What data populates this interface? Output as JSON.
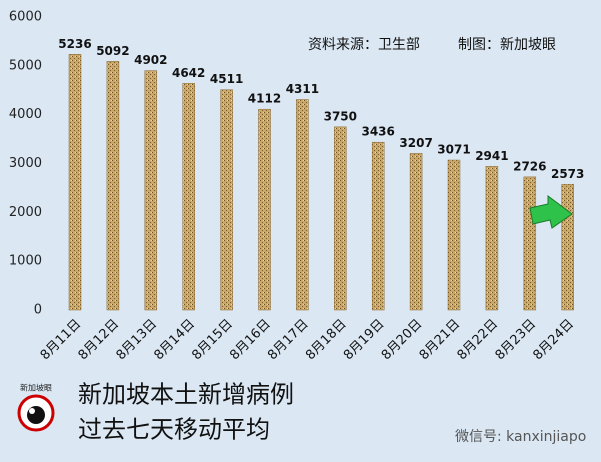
{
  "chart_data": {
    "type": "bar",
    "title": "新加坡本土新增病例",
    "subtitle": "过去七天移动平均",
    "annotations": [
      "资料来源：卫生部",
      "制图：新加坡眼",
      "微信号: kanxinjiapo"
    ],
    "logo": "新加坡眼",
    "categories": [
      "8月11日",
      "8月12日",
      "8月13日",
      "8月14日",
      "8月15日",
      "8月16日",
      "8月17日",
      "8月18日",
      "8月19日",
      "8月20日",
      "8月21日",
      "8月22日",
      "8月23日",
      "8月24日"
    ],
    "values": [
      5236,
      5092,
      4902,
      4642,
      4511,
      4112,
      4311,
      3750,
      3436,
      3207,
      3071,
      2941,
      2726,
      2573
    ],
    "color": "#c9a86a",
    "ylim": [
      0,
      6000
    ],
    "yticks": [
      0,
      1000,
      2000,
      3000,
      4000,
      5000,
      6000
    ],
    "grid": false
  }
}
